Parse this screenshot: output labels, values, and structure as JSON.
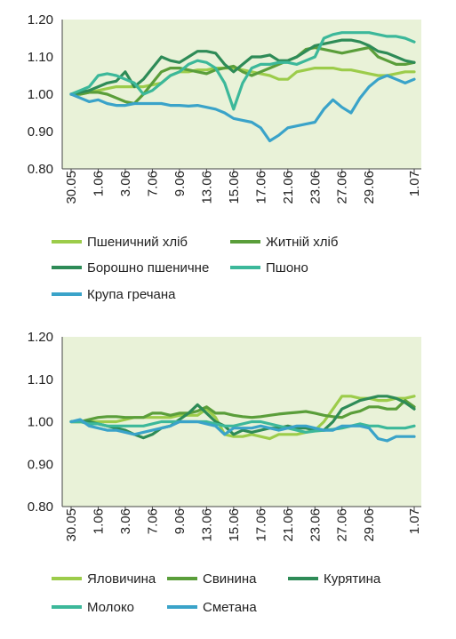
{
  "chart_data": [
    {
      "type": "line",
      "categories": [
        "30.05",
        "1.06",
        "3.06",
        "7.06",
        "9.06",
        "13.06",
        "15.06",
        "17.06",
        "21.06",
        "23.06",
        "27.06",
        "29.06",
        "1.07"
      ],
      "x": [
        0,
        1,
        2,
        3,
        4,
        5,
        6,
        7,
        8,
        9,
        10,
        11,
        12,
        13,
        14,
        15,
        16,
        17,
        18,
        19,
        20,
        21,
        22,
        23,
        24,
        25,
        26,
        27,
        28,
        29,
        30,
        31,
        32,
        33,
        34,
        35,
        36,
        37,
        38
      ],
      "ylim": [
        0.8,
        1.2
      ],
      "yticks": [
        "0.80",
        "0.90",
        "1.00",
        "1.10",
        "1.20"
      ],
      "grid": false,
      "legend_position": "bottom",
      "series": [
        {
          "name": "Пшеничний хліб",
          "color": "#9ccc4a",
          "values": [
            1.0,
            1.0,
            1.005,
            1.01,
            1.015,
            1.02,
            1.02,
            1.02,
            1.02,
            1.025,
            1.03,
            1.05,
            1.06,
            1.06,
            1.065,
            1.065,
            1.07,
            1.07,
            1.07,
            1.065,
            1.06,
            1.055,
            1.05,
            1.04,
            1.04,
            1.06,
            1.065,
            1.07,
            1.07,
            1.07,
            1.065,
            1.065,
            1.06,
            1.055,
            1.05,
            1.05,
            1.055,
            1.06,
            1.06
          ]
        },
        {
          "name": "Житній хліб",
          "color": "#5a9e3a",
          "values": [
            1.0,
            1.0,
            1.005,
            1.005,
            1.0,
            0.99,
            0.98,
            0.975,
            1.0,
            1.03,
            1.06,
            1.07,
            1.07,
            1.065,
            1.06,
            1.055,
            1.065,
            1.07,
            1.075,
            1.06,
            1.05,
            1.06,
            1.07,
            1.08,
            1.09,
            1.1,
            1.12,
            1.125,
            1.12,
            1.115,
            1.11,
            1.115,
            1.12,
            1.125,
            1.1,
            1.09,
            1.08,
            1.08,
            1.085
          ]
        },
        {
          "name": "Борошно пшеничне",
          "color": "#2e8b57",
          "values": [
            1.0,
            1.005,
            1.01,
            1.02,
            1.03,
            1.035,
            1.06,
            1.02,
            1.04,
            1.07,
            1.1,
            1.09,
            1.085,
            1.1,
            1.115,
            1.115,
            1.11,
            1.08,
            1.06,
            1.08,
            1.1,
            1.1,
            1.105,
            1.09,
            1.09,
            1.1,
            1.115,
            1.13,
            1.135,
            1.14,
            1.145,
            1.145,
            1.14,
            1.13,
            1.115,
            1.11,
            1.1,
            1.09,
            1.085
          ]
        },
        {
          "name": "Пшоно",
          "color": "#3cb89a",
          "values": [
            1.0,
            1.01,
            1.02,
            1.05,
            1.055,
            1.05,
            1.04,
            1.03,
            1.0,
            1.01,
            1.03,
            1.05,
            1.06,
            1.08,
            1.09,
            1.085,
            1.07,
            1.03,
            0.96,
            1.03,
            1.07,
            1.08,
            1.08,
            1.085,
            1.085,
            1.08,
            1.09,
            1.1,
            1.15,
            1.16,
            1.165,
            1.165,
            1.165,
            1.165,
            1.16,
            1.155,
            1.155,
            1.15,
            1.14
          ]
        },
        {
          "name": "Крупа гречана",
          "color": "#3aa3c9",
          "values": [
            1.0,
            0.99,
            0.98,
            0.985,
            0.975,
            0.97,
            0.97,
            0.975,
            0.975,
            0.975,
            0.975,
            0.97,
            0.97,
            0.968,
            0.97,
            0.965,
            0.96,
            0.95,
            0.935,
            0.93,
            0.925,
            0.91,
            0.875,
            0.89,
            0.91,
            0.915,
            0.92,
            0.925,
            0.96,
            0.985,
            0.965,
            0.95,
            0.99,
            1.02,
            1.04,
            1.05,
            1.04,
            1.03,
            1.04
          ]
        }
      ]
    },
    {
      "type": "line",
      "categories": [
        "30.05",
        "1.06",
        "3.06",
        "7.06",
        "9.06",
        "13.06",
        "15.06",
        "17.06",
        "21.06",
        "23.06",
        "27.06",
        "29.06",
        "1.07"
      ],
      "x": [
        0,
        1,
        2,
        3,
        4,
        5,
        6,
        7,
        8,
        9,
        10,
        11,
        12,
        13,
        14,
        15,
        16,
        17,
        18,
        19,
        20,
        21,
        22,
        23,
        24,
        25,
        26,
        27,
        28,
        29,
        30,
        31,
        32,
        33,
        34,
        35,
        36,
        37,
        38
      ],
      "ylim": [
        0.8,
        1.2
      ],
      "yticks": [
        "0.80",
        "0.90",
        "1.00",
        "1.10",
        "1.20"
      ],
      "grid": false,
      "legend_position": "bottom",
      "series": [
        {
          "name": "Яловичина",
          "color": "#9ccc4a",
          "values": [
            1.0,
            1.0,
            1.0,
            1.0,
            1.0,
            1.0,
            1.005,
            1.01,
            1.01,
            1.01,
            1.01,
            1.01,
            1.015,
            1.015,
            1.015,
            1.03,
            1.01,
            0.97,
            0.965,
            0.965,
            0.97,
            0.965,
            0.96,
            0.97,
            0.97,
            0.97,
            0.975,
            0.98,
            1.0,
            1.03,
            1.06,
            1.06,
            1.055,
            1.055,
            1.05,
            1.05,
            1.055,
            1.055,
            1.06
          ]
        },
        {
          "name": "Свинина",
          "color": "#5a9e3a",
          "values": [
            1.0,
            1.0,
            1.005,
            1.01,
            1.012,
            1.012,
            1.01,
            1.01,
            1.01,
            1.02,
            1.02,
            1.015,
            1.02,
            1.02,
            1.025,
            1.035,
            1.02,
            1.02,
            1.015,
            1.012,
            1.01,
            1.012,
            1.015,
            1.018,
            1.02,
            1.022,
            1.024,
            1.02,
            1.015,
            1.012,
            1.01,
            1.02,
            1.025,
            1.035,
            1.035,
            1.03,
            1.03,
            1.05,
            1.035
          ]
        },
        {
          "name": "Курятина",
          "color": "#2e8b57",
          "values": [
            1.0,
            1.0,
            1.0,
            0.995,
            0.99,
            0.985,
            0.98,
            0.97,
            0.962,
            0.97,
            0.985,
            0.99,
            1.005,
            1.02,
            1.04,
            1.02,
            1.0,
            0.99,
            0.97,
            0.98,
            0.975,
            0.98,
            0.985,
            0.985,
            0.99,
            0.985,
            0.985,
            0.98,
            0.98,
            1.0,
            1.03,
            1.04,
            1.05,
            1.055,
            1.06,
            1.06,
            1.055,
            1.045,
            1.03
          ]
        },
        {
          "name": "Молоко",
          "color": "#3cb89a",
          "values": [
            1.0,
            1.0,
            0.995,
            0.995,
            0.99,
            0.99,
            0.99,
            0.99,
            0.99,
            0.995,
            1.0,
            1.0,
            1.0,
            1.0,
            1.0,
            1.0,
            0.995,
            0.99,
            0.99,
            0.995,
            1.0,
            1.0,
            0.995,
            0.99,
            0.985,
            0.98,
            0.975,
            0.978,
            0.98,
            0.982,
            0.985,
            0.99,
            0.995,
            0.99,
            0.99,
            0.985,
            0.985,
            0.985,
            0.99
          ]
        },
        {
          "name": "Сметана",
          "color": "#3aa3c9",
          "values": [
            1.0,
            1.005,
            0.99,
            0.985,
            0.98,
            0.98,
            0.975,
            0.97,
            0.975,
            0.98,
            0.985,
            0.99,
            1.0,
            1.0,
            1.0,
            0.995,
            0.99,
            0.97,
            0.985,
            0.985,
            0.985,
            0.99,
            0.985,
            0.98,
            0.985,
            0.99,
            0.99,
            0.985,
            0.98,
            0.98,
            0.99,
            0.99,
            0.99,
            0.985,
            0.96,
            0.955,
            0.965,
            0.965,
            0.965
          ]
        }
      ]
    }
  ]
}
